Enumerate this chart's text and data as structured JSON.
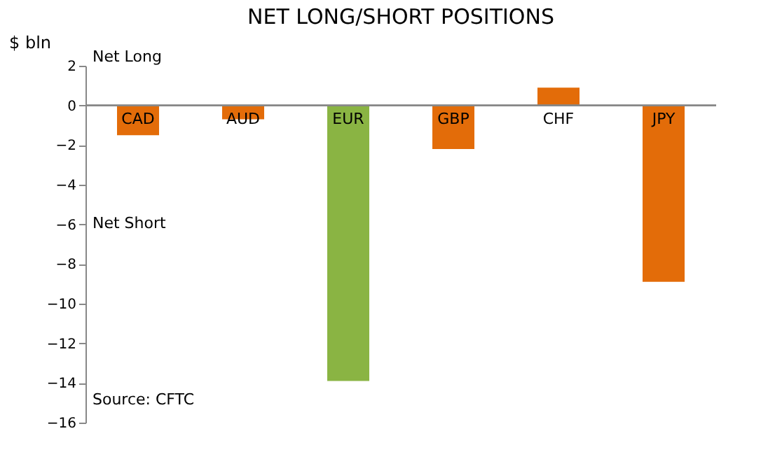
{
  "chart_data": {
    "type": "bar",
    "title": "NET LONG/SHORT POSITIONS",
    "ylabel": "$ bln",
    "categories": [
      "CAD",
      "AUD",
      "EUR",
      "GBP",
      "CHF",
      "JPY"
    ],
    "values": [
      -1.5,
      -0.7,
      -13.9,
      -2.2,
      0.9,
      -8.9
    ],
    "colors": [
      "#e36c09",
      "#e36c09",
      "#8ab443",
      "#e36c09",
      "#e36c09",
      "#e36c09"
    ],
    "ylim": [
      -16,
      2
    ],
    "yticks": [
      -16,
      -14,
      -12,
      -10,
      -8,
      -6,
      -4,
      -2,
      0,
      2
    ],
    "annotations": [
      "Net Long",
      "Net Short",
      "Source: CFTC"
    ],
    "grid": false
  }
}
